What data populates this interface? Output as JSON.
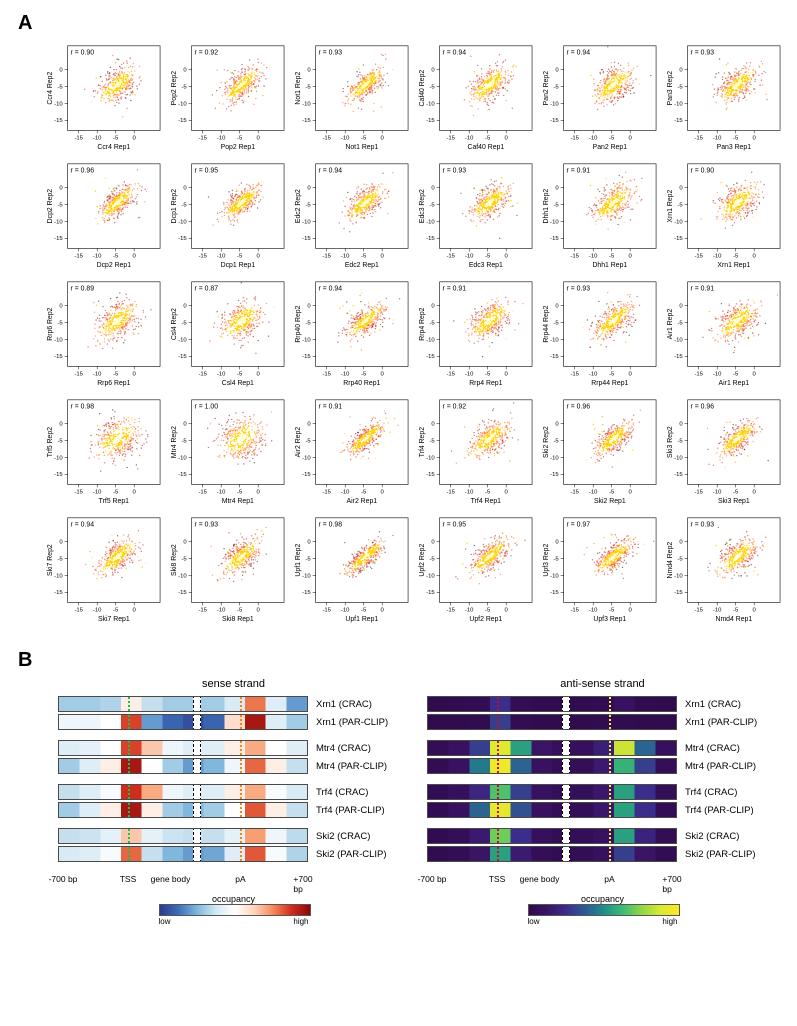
{
  "panelA": {
    "label": "A",
    "r_prefix": "r = ",
    "axis_ticks": [
      -15,
      -10,
      -5,
      0
    ],
    "axis_range": [
      -18,
      7
    ],
    "proteins": [
      {
        "name": "Ccr4",
        "r": 0.9,
        "core_tightness": 0.62
      },
      {
        "name": "Pop2",
        "r": 0.92,
        "core_tightness": 0.7
      },
      {
        "name": "Not1",
        "r": 0.93,
        "core_tightness": 0.74
      },
      {
        "name": "Caf40",
        "r": 0.94,
        "core_tightness": 0.6
      },
      {
        "name": "Pan2",
        "r": 0.94,
        "core_tightness": 0.58
      },
      {
        "name": "Pan3",
        "r": 0.93,
        "core_tightness": 0.66
      },
      {
        "name": "Dcp2",
        "r": 0.96,
        "core_tightness": 0.74
      },
      {
        "name": "Dcp1",
        "r": 0.95,
        "core_tightness": 0.72
      },
      {
        "name": "Edc2",
        "r": 0.94,
        "core_tightness": 0.7
      },
      {
        "name": "Edc3",
        "r": 0.93,
        "core_tightness": 0.64
      },
      {
        "name": "Dhh1",
        "r": 0.91,
        "core_tightness": 0.58
      },
      {
        "name": "Xrn1",
        "r": 0.9,
        "core_tightness": 0.56
      },
      {
        "name": "Rrp6",
        "r": 0.89,
        "core_tightness": 0.54
      },
      {
        "name": "Csl4",
        "r": 0.87,
        "core_tightness": 0.46
      },
      {
        "name": "Rrp40",
        "r": 0.94,
        "core_tightness": 0.74
      },
      {
        "name": "Rrp4",
        "r": 0.91,
        "core_tightness": 0.6
      },
      {
        "name": "Rrp44",
        "r": 0.93,
        "core_tightness": 0.66
      },
      {
        "name": "Air1",
        "r": 0.91,
        "core_tightness": 0.58
      },
      {
        "name": "Trf5",
        "r": 0.98,
        "core_tightness": 0.4
      },
      {
        "name": "Mtr4",
        "r": 1.0,
        "core_tightness": 0.34
      },
      {
        "name": "Air2",
        "r": 0.91,
        "core_tightness": 0.82
      },
      {
        "name": "Trf4",
        "r": 0.92,
        "core_tightness": 0.62
      },
      {
        "name": "Ski2",
        "r": 0.96,
        "core_tightness": 0.74
      },
      {
        "name": "Ski3",
        "r": 0.96,
        "core_tightness": 0.74
      },
      {
        "name": "Ski7",
        "r": 0.94,
        "core_tightness": 0.68
      },
      {
        "name": "Ski8",
        "r": 0.93,
        "core_tightness": 0.66
      },
      {
        "name": "Upf1",
        "r": 0.98,
        "core_tightness": 0.86
      },
      {
        "name": "Upf2",
        "r": 0.95,
        "core_tightness": 0.72
      },
      {
        "name": "Upf3",
        "r": 0.97,
        "core_tightness": 0.78
      },
      {
        "name": "Nmd4",
        "r": 0.93,
        "core_tightness": 0.64
      }
    ],
    "xlabel_suffix": " Rep1",
    "ylabel_suffix": " Rep2",
    "density_colors": [
      "#000000",
      "#7a0000",
      "#c41010",
      "#ff5a00",
      "#ffd000",
      "#fffec0"
    ]
  },
  "panelB": {
    "label": "B",
    "left_title": "sense strand",
    "right_title": "anti-sense strand",
    "xaxis": [
      "-700 bp",
      "TSS",
      "gene body",
      "pA",
      "+700 bp"
    ],
    "xaxis_positions_pct": [
      2,
      28,
      45,
      73,
      98
    ],
    "tss_pos_pct": 28,
    "pa_pos_pct": 73,
    "gap_pos_pct": 54,
    "colorbar_title": "occupancy",
    "colorbar_labels": [
      "low",
      "high"
    ],
    "sense_cmap": [
      "#2b3b8f",
      "#3d6fb8",
      "#7fb8dc",
      "#d6e9f4",
      "#ffffff",
      "#fcd6c0",
      "#f58c5b",
      "#d12f1e",
      "#8a0808"
    ],
    "anti_cmap": [
      "#2e0a4a",
      "#3a1466",
      "#3b2d8c",
      "#2e5a92",
      "#1f8e89",
      "#3cbb75",
      "#8fd744",
      "#d9e933",
      "#fde725"
    ],
    "groups": [
      {
        "protein": "Xrn1",
        "rows": [
          "Xrn1 (CRAC)",
          "Xrn1 (PAR-CLIP)"
        ],
        "sense": [
          [
            0.3,
            0.3,
            0.32,
            0.55,
            0.35,
            0.3,
            0.3,
            0.3,
            0.38,
            0.78,
            0.4,
            0.2
          ],
          [
            0.45,
            0.45,
            0.5,
            0.85,
            0.2,
            0.1,
            0.05,
            0.1,
            0.6,
            0.95,
            0.4,
            0.3
          ]
        ],
        "anti": [
          [
            0.02,
            0.03,
            0.04,
            0.25,
            0.05,
            0.03,
            0.03,
            0.03,
            0.04,
            0.1,
            0.03,
            0.02
          ],
          [
            0.02,
            0.02,
            0.03,
            0.3,
            0.04,
            0.02,
            0.02,
            0.02,
            0.03,
            0.03,
            0.02,
            0.02
          ]
        ]
      },
      {
        "protein": "Mtr4",
        "rows": [
          "Mtr4 (CRAC)",
          "Mtr4 (PAR-CLIP)"
        ],
        "sense": [
          [
            0.4,
            0.42,
            0.5,
            0.85,
            0.65,
            0.45,
            0.4,
            0.4,
            0.55,
            0.7,
            0.5,
            0.4
          ],
          [
            0.3,
            0.4,
            0.55,
            0.95,
            0.5,
            0.3,
            0.2,
            0.25,
            0.45,
            0.8,
            0.55,
            0.35
          ]
        ],
        "anti": [
          [
            0.05,
            0.1,
            0.3,
            0.9,
            0.55,
            0.12,
            0.08,
            0.08,
            0.18,
            0.85,
            0.4,
            0.08
          ],
          [
            0.04,
            0.1,
            0.45,
            0.95,
            0.4,
            0.1,
            0.06,
            0.06,
            0.15,
            0.6,
            0.3,
            0.06
          ]
        ]
      },
      {
        "protein": "Trf4",
        "rows": [
          "Trf4 (CRAC)",
          "Trf4 (PAR-CLIP)"
        ],
        "sense": [
          [
            0.35,
            0.4,
            0.48,
            0.88,
            0.7,
            0.45,
            0.4,
            0.4,
            0.55,
            0.7,
            0.48,
            0.38
          ],
          [
            0.3,
            0.4,
            0.55,
            0.95,
            0.55,
            0.3,
            0.25,
            0.3,
            0.5,
            0.82,
            0.55,
            0.35
          ]
        ],
        "anti": [
          [
            0.04,
            0.08,
            0.22,
            0.65,
            0.3,
            0.1,
            0.07,
            0.07,
            0.14,
            0.55,
            0.25,
            0.06
          ],
          [
            0.04,
            0.1,
            0.4,
            0.92,
            0.35,
            0.1,
            0.06,
            0.06,
            0.14,
            0.55,
            0.25,
            0.05
          ]
        ]
      },
      {
        "protein": "Ski2",
        "rows": [
          "Ski2 (CRAC)",
          "Ski2 (PAR-CLIP)"
        ],
        "sense": [
          [
            0.35,
            0.36,
            0.42,
            0.65,
            0.42,
            0.36,
            0.35,
            0.35,
            0.42,
            0.72,
            0.45,
            0.34
          ],
          [
            0.38,
            0.4,
            0.48,
            0.8,
            0.35,
            0.25,
            0.2,
            0.22,
            0.4,
            0.82,
            0.48,
            0.32
          ]
        ],
        "anti": [
          [
            0.03,
            0.06,
            0.15,
            0.7,
            0.25,
            0.08,
            0.05,
            0.06,
            0.1,
            0.55,
            0.2,
            0.05
          ],
          [
            0.03,
            0.05,
            0.12,
            0.55,
            0.16,
            0.06,
            0.04,
            0.05,
            0.09,
            0.3,
            0.12,
            0.04
          ]
        ]
      }
    ]
  },
  "colors": {
    "background": "#ffffff",
    "axis": "#000000",
    "sense_tss_marker": "#19c24a",
    "sense_pa_marker": "#ff7f0e",
    "anti_tss_marker": "#c01030",
    "anti_pa_marker": "#ffea3a"
  }
}
